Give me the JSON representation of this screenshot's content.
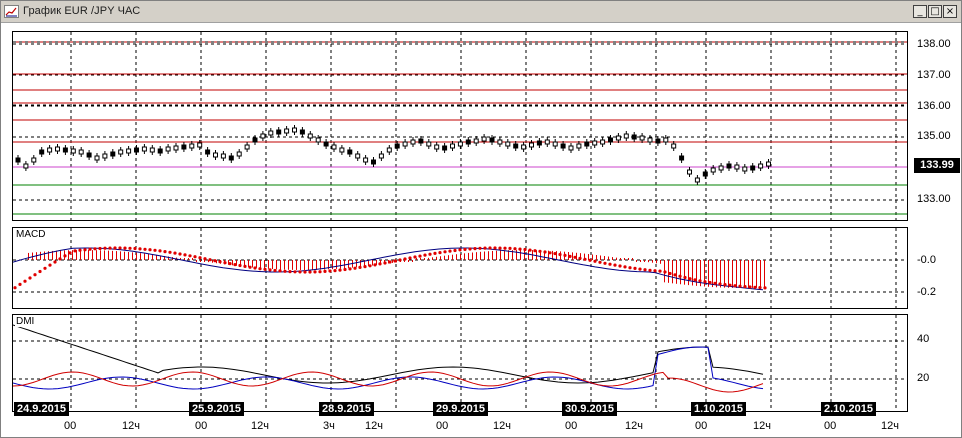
{
  "window": {
    "title": "График EUR /JPY  ЧАС",
    "min_label": "_",
    "max_label": "□",
    "close_label": "×"
  },
  "price_axis": {
    "labels": [
      "138.00",
      "137.00",
      "136.00",
      "135.00",
      "133.00"
    ],
    "current": "133.99"
  },
  "macd": {
    "title": "MACD",
    "labels": [
      "-0.0",
      "-0.2"
    ]
  },
  "dmi": {
    "title": "DMI",
    "labels": [
      "40",
      "20"
    ]
  },
  "dates": [
    "24.9.2015",
    "25.9.2015",
    "28.9.2015",
    "29.9.2015",
    "30.9.2015",
    "1.10.2015",
    "2.10.2015"
  ],
  "hours": [
    "00",
    "12ч",
    "00",
    "12ч",
    "3ч",
    "12ч",
    "00",
    "12ч",
    "00",
    "12ч",
    "00",
    "12ч",
    "00",
    "12ч"
  ],
  "colors": {
    "resistance": "#c00000",
    "support": "#008000",
    "current_line": "#cc44cc",
    "macd_signal": "#e00000",
    "macd_line": "#000080",
    "dmi_adx": "#000000",
    "dmi_plus": "#0000c0",
    "dmi_minus": "#d00000"
  }
}
